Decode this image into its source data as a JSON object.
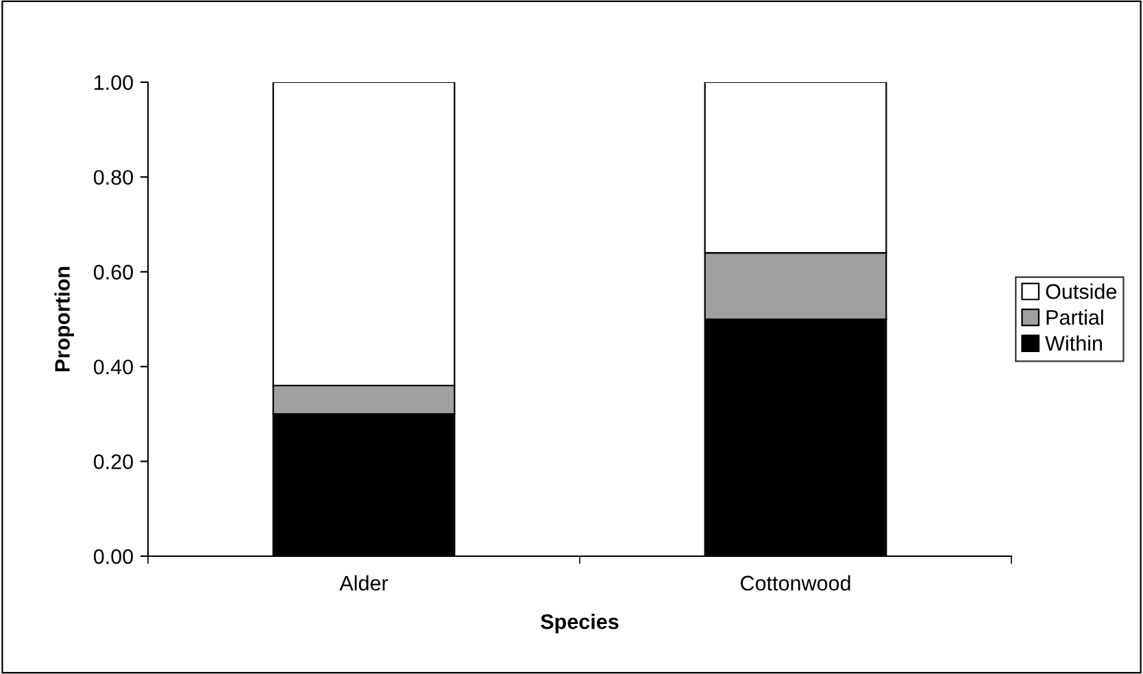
{
  "chart_data": {
    "type": "bar",
    "stacked": true,
    "xlabel": "Species",
    "ylabel": "Proportion",
    "categories": [
      "Alder",
      "Cottonwood"
    ],
    "series": [
      {
        "name": "Within",
        "color": "#000000",
        "values": [
          0.3,
          0.5
        ]
      },
      {
        "name": "Partial",
        "color": "#a0a0a0",
        "values": [
          0.06,
          0.14
        ]
      },
      {
        "name": "Outside",
        "color": "#ffffff",
        "values": [
          0.64,
          0.36
        ]
      }
    ],
    "ylim": [
      0,
      1
    ],
    "yticks": [
      {
        "value": 0,
        "label": "0.00"
      },
      {
        "value": 0.2,
        "label": "0.20"
      },
      {
        "value": 0.4,
        "label": "0.40"
      },
      {
        "value": 0.6,
        "label": "0.60"
      },
      {
        "value": 0.8,
        "label": "0.80"
      },
      {
        "value": 1,
        "label": "1.00"
      }
    ],
    "grid": false,
    "legend": "right"
  }
}
